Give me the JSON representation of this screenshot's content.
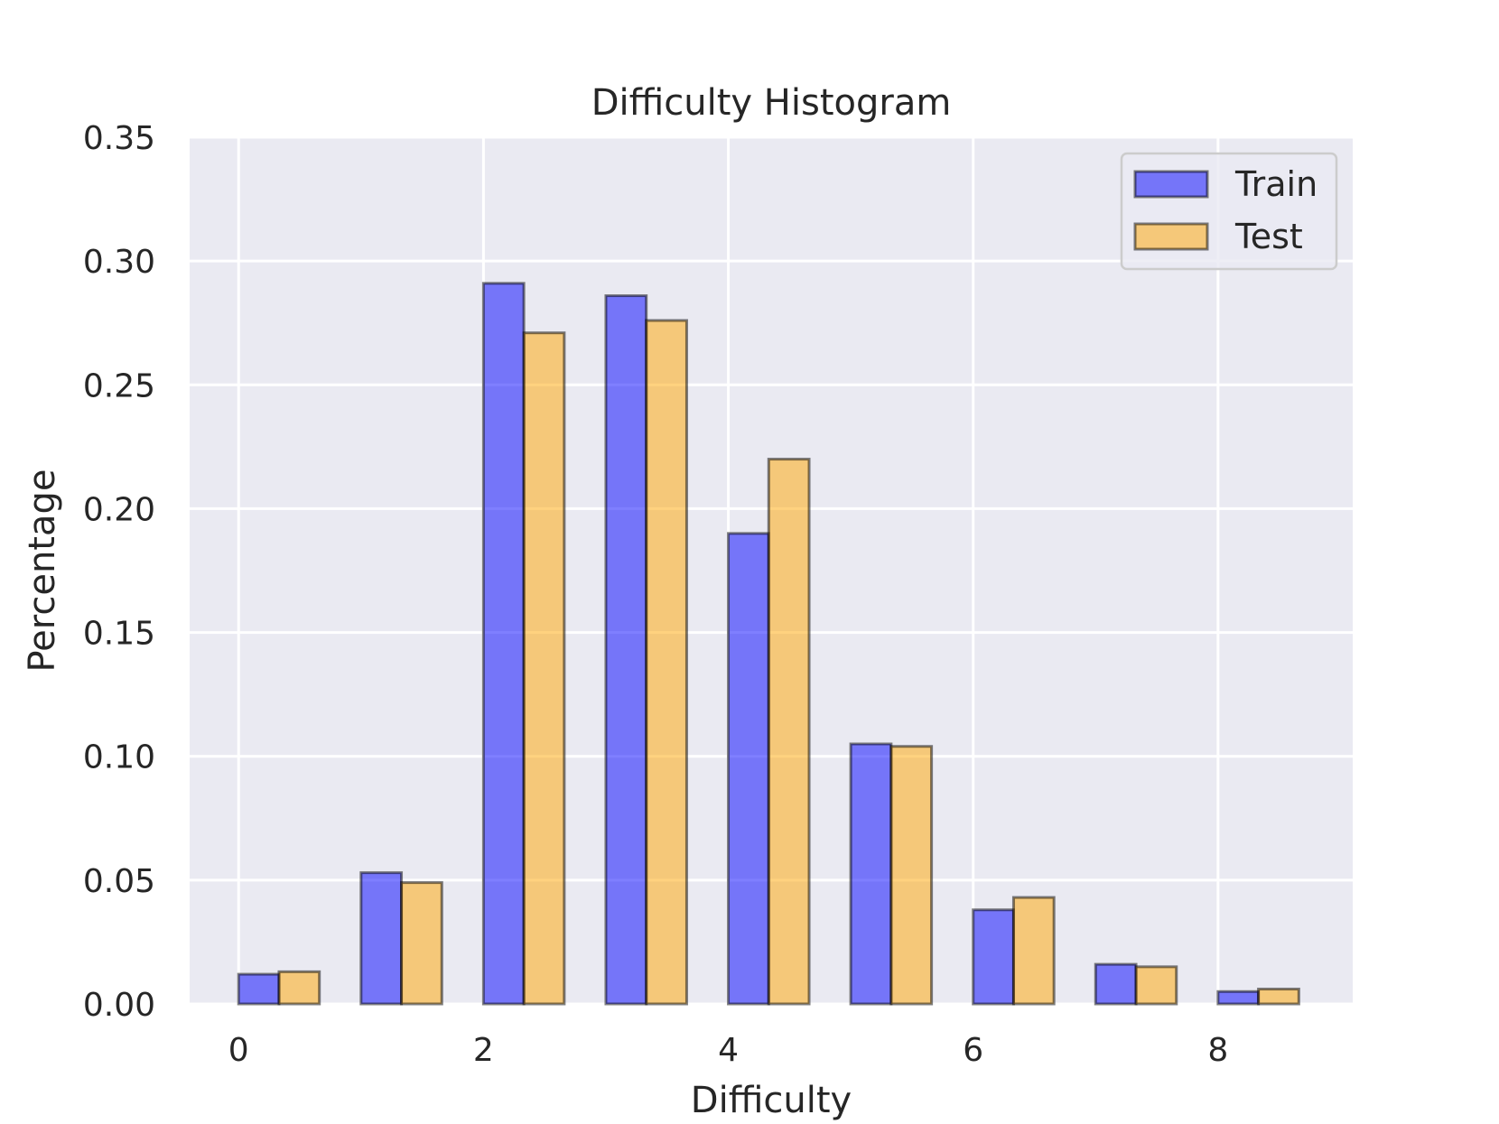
{
  "chart_data": {
    "type": "bar",
    "title": "Difficulty Histogram",
    "xlabel": "Difficulty",
    "ylabel": "Percentage",
    "xlim": [
      -0.4,
      9.1
    ],
    "ylim": [
      0,
      0.35
    ],
    "xticks": [
      0,
      2,
      4,
      6,
      8
    ],
    "xtick_labels": [
      "0",
      "2",
      "4",
      "6",
      "8"
    ],
    "yticks": [
      0.0,
      0.05,
      0.1,
      0.15,
      0.2,
      0.25,
      0.3,
      0.35
    ],
    "ytick_labels": [
      "0.00",
      "0.05",
      "0.10",
      "0.15",
      "0.20",
      "0.25",
      "0.30",
      "0.35"
    ],
    "x": [
      0,
      1,
      2,
      3,
      4,
      5,
      6,
      7,
      8
    ],
    "series": [
      {
        "name": "Train",
        "color": "#0000ff",
        "alpha": 0.5,
        "offset": 0.0,
        "width": 0.33,
        "values": [
          0.012,
          0.053,
          0.291,
          0.286,
          0.19,
          0.105,
          0.038,
          0.016,
          0.005
        ]
      },
      {
        "name": "Test",
        "color": "#ffa500",
        "alpha": 0.5,
        "offset": 0.33,
        "width": 0.33,
        "values": [
          0.013,
          0.049,
          0.271,
          0.276,
          0.22,
          0.104,
          0.043,
          0.015,
          0.006
        ]
      }
    ],
    "grid": true,
    "legend_position": "top-right",
    "background_color": "#eaeaf2",
    "edge_color": "#000000"
  }
}
